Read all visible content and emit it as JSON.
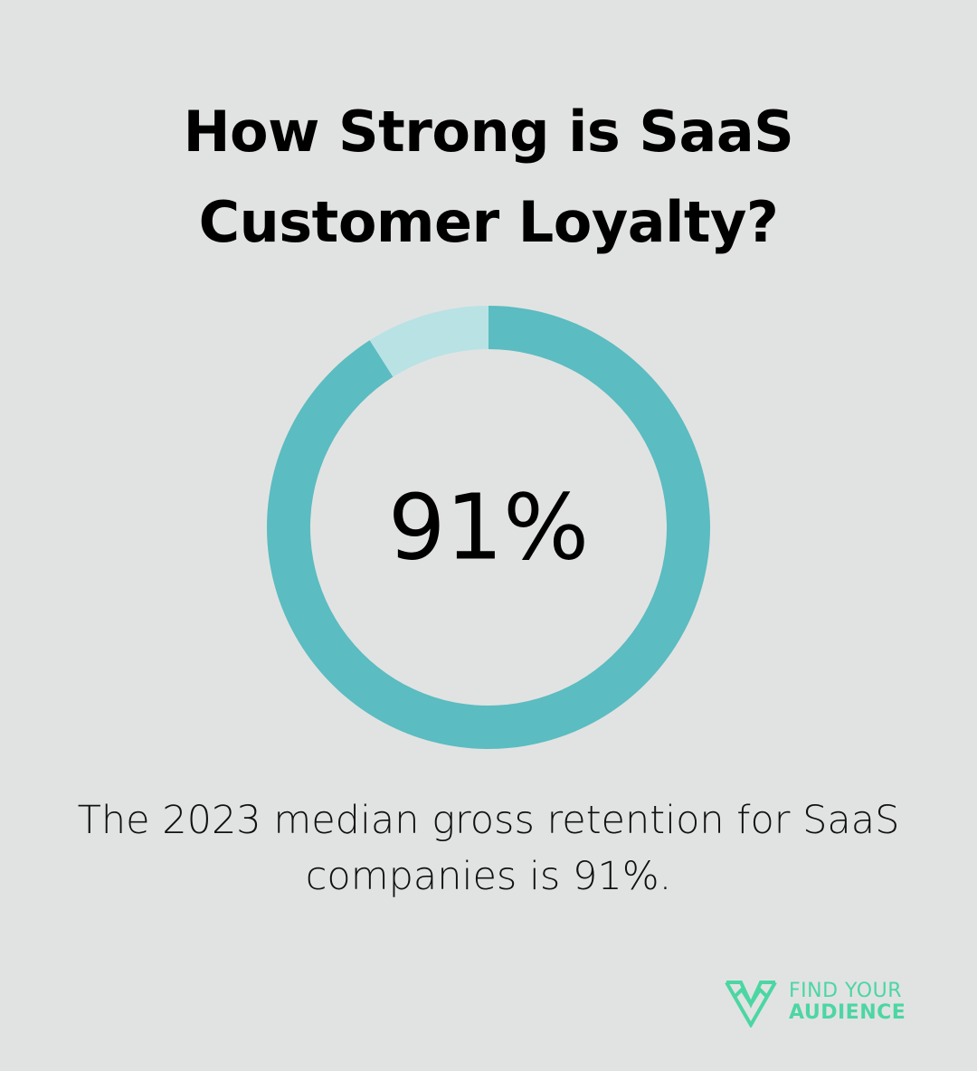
{
  "title": {
    "line1": "How Strong is SaaS",
    "line2": "Customer Loyalty?"
  },
  "chart_data": {
    "type": "pie",
    "title": "How Strong is SaaS Customer Loyalty?",
    "center_label": "91%",
    "slices": [
      {
        "label": "",
        "value": 91,
        "color": "#5bbcc1"
      },
      {
        "label": "",
        "value": 9,
        "color": "#b9e2e5"
      }
    ]
  },
  "caption": {
    "line1": "The 2023 median gross retention for SaaS",
    "line2": "companies is 91%."
  },
  "logo": {
    "line1": "FIND YOUR",
    "line2": "AUDIENCE",
    "color": "#4cd6a4",
    "icon": "find-your-audience-logo-icon"
  },
  "colors": {
    "background": "#e1e3e2",
    "primary": "#5bbcc1",
    "secondary": "#b9e2e5"
  }
}
